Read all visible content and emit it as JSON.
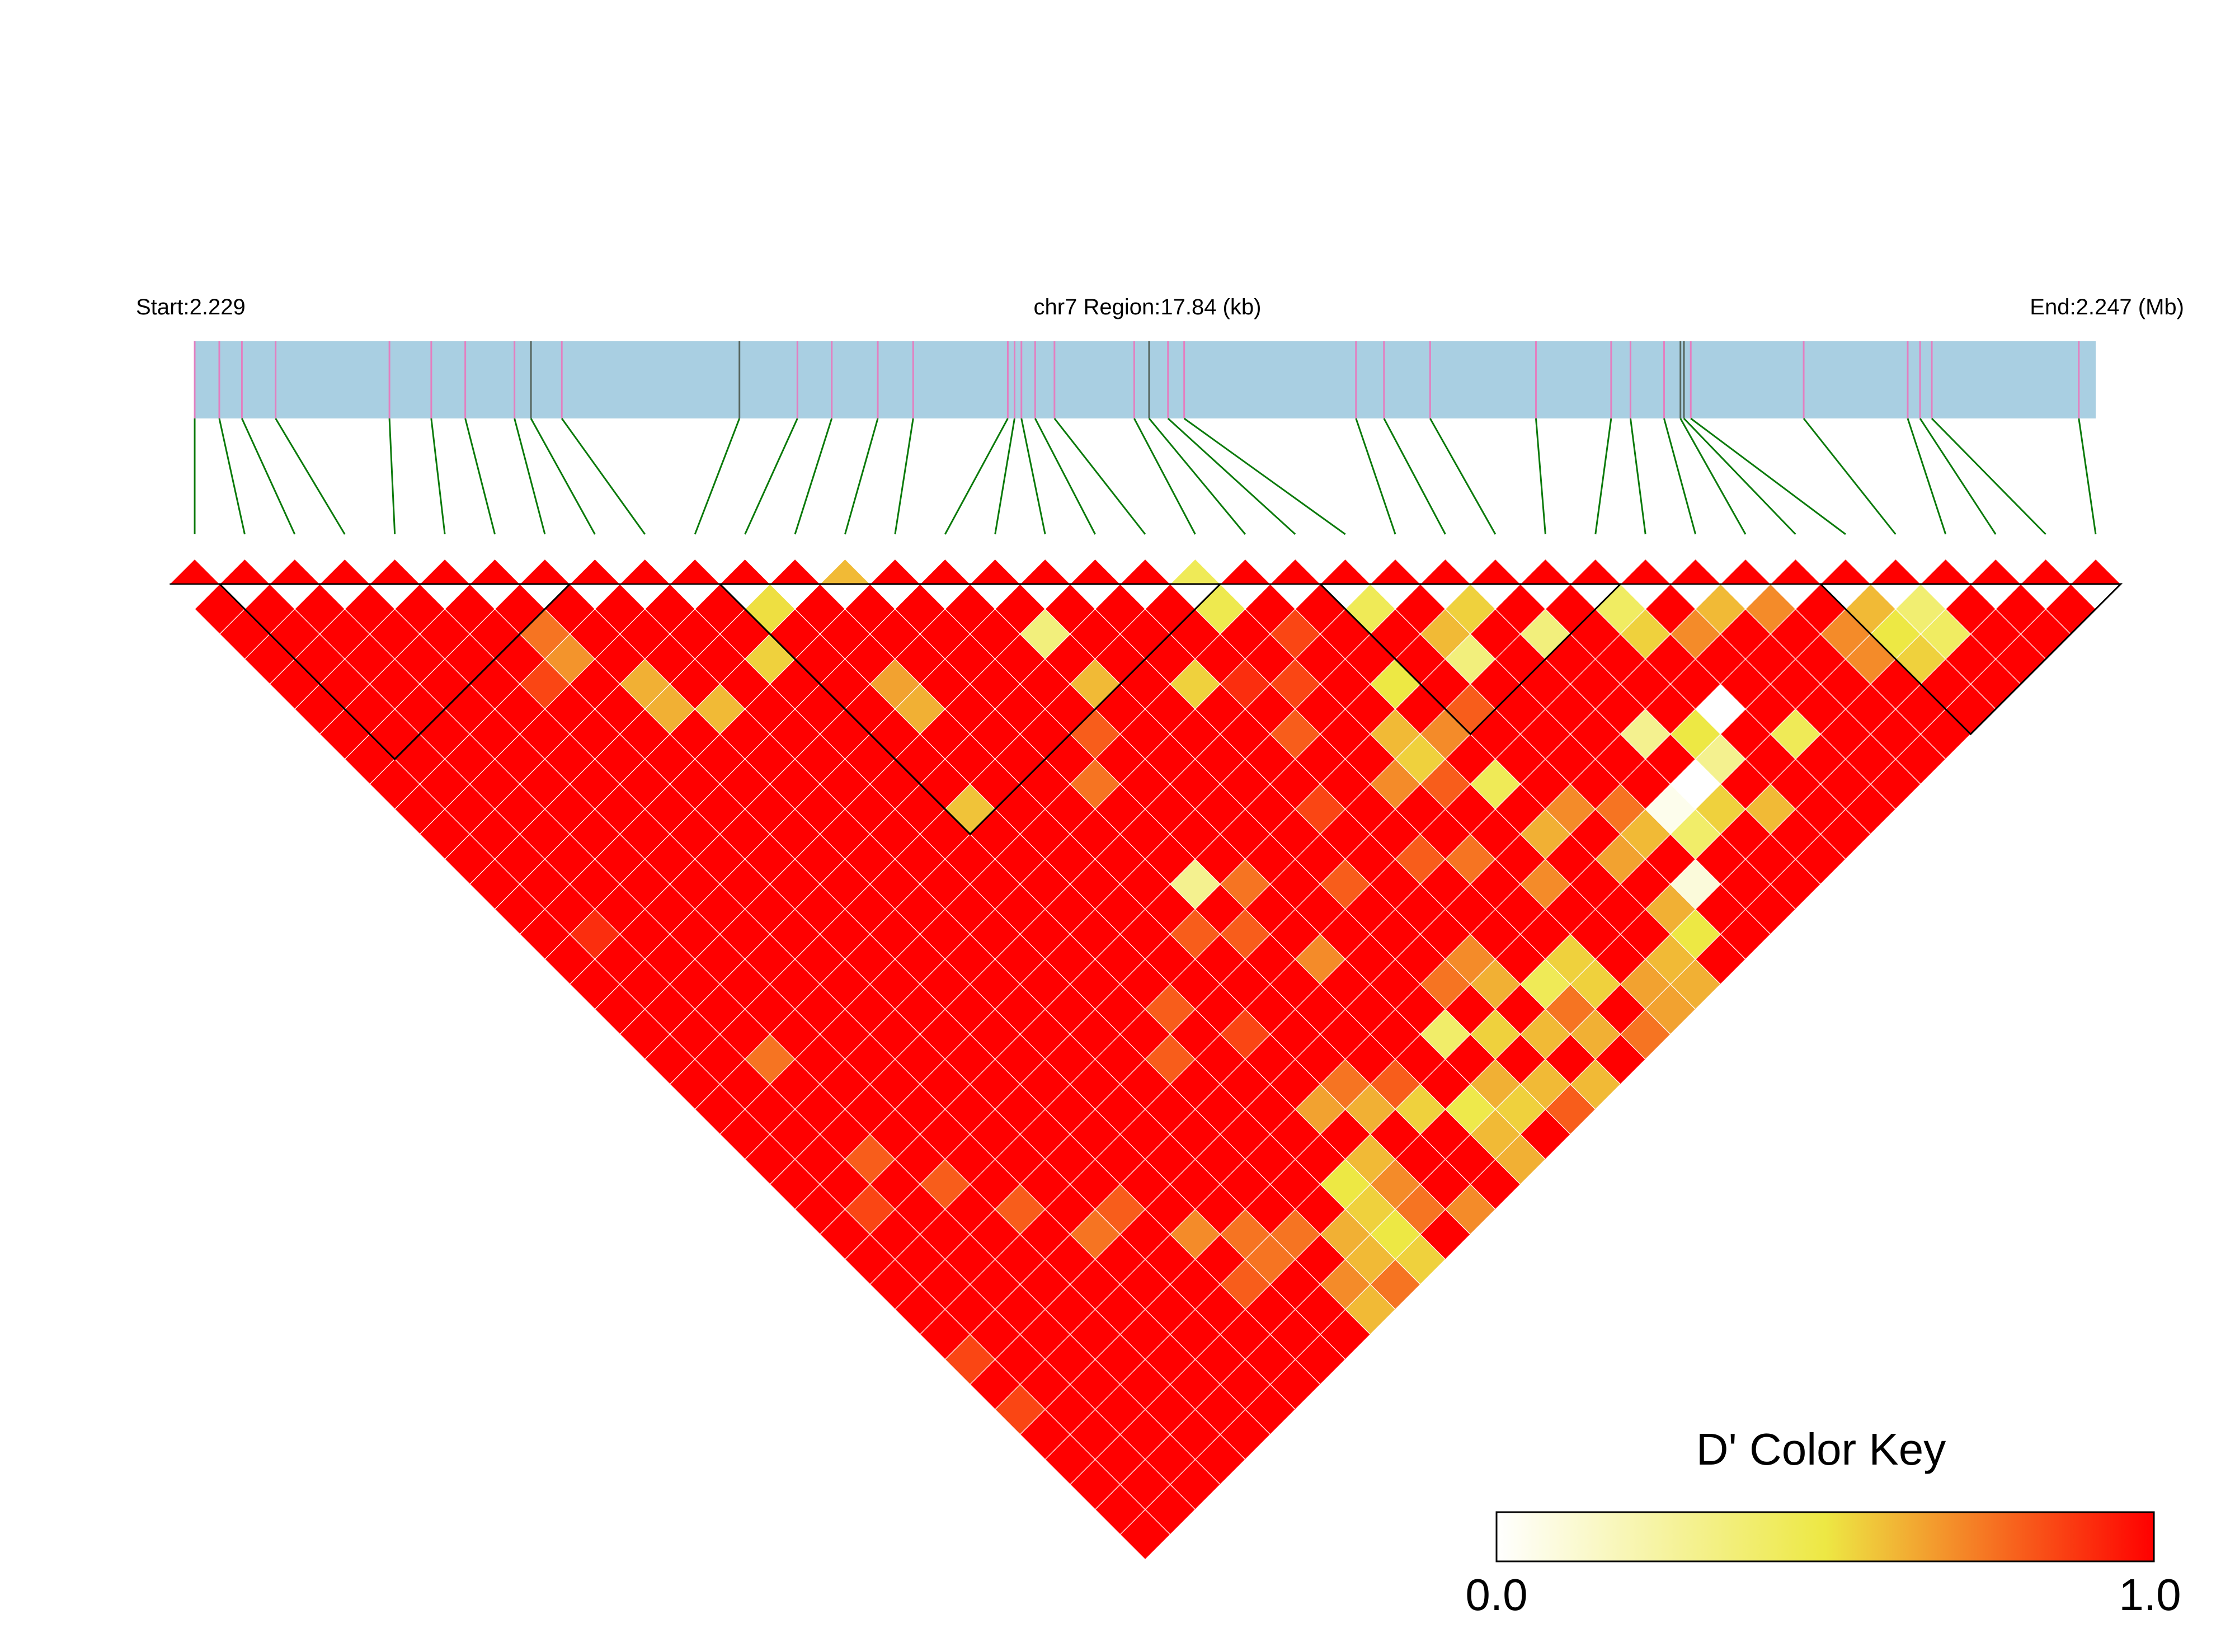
{
  "chart_data": {
    "type": "heatmap",
    "subtype": "ld-triangle",
    "header": {
      "start_label": "Start:2.229",
      "region_label": "chr7 Region:17.84 (kb)",
      "end_label": "End:2.247 (Mb)"
    },
    "chromosome": "chr7",
    "region_start_mb": 2.229,
    "region_end_mb": 2.247,
    "region_length_kb": 17.84,
    "snp_count": 39,
    "snp_positions_mb": [
      2.229,
      2.229233,
      2.229447,
      2.229766,
      2.230844,
      2.23124,
      2.231562,
      2.232028,
      2.232184,
      2.232476,
      2.234158,
      2.234707,
      2.235032,
      2.235468,
      2.235803,
      2.236699,
      2.236763,
      2.236828,
      2.236958,
      2.237141,
      2.237896,
      2.238037,
      2.238216,
      2.238369,
      2.239996,
      2.240261,
      2.240698,
      2.2417,
      2.242412,
      2.242595,
      2.242913,
      2.243068,
      2.243101,
      2.243166,
      2.244235,
      2.24522,
      2.245337,
      2.245448,
      2.24684
    ],
    "haplotype_blocks": [
      [
        1,
        7
      ],
      [
        11,
        20
      ],
      [
        23,
        28
      ],
      [
        33,
        38
      ]
    ],
    "color_key": {
      "title": "D' Color Key",
      "min_label": "0.0",
      "max_label": "1.0",
      "min": 0.0,
      "max": 1.0,
      "low_color": "#FFFFFF",
      "mid_color": "#EDE844",
      "high_color": "#FF0000"
    },
    "legend_position": "bottom-right",
    "colors": {
      "track_fill": "#A9CFE2",
      "tick_pink": "#E37FC0",
      "tick_dark": "#56665F",
      "connector_green": "#0B7A0B",
      "cell_grid": "#FFFFFF",
      "block_outline": "#000000"
    },
    "d_prime_default": 1.0,
    "d_prime_pairs": [
      [
        6,
        8,
        0.75
      ],
      [
        5,
        9,
        0.85
      ],
      [
        6,
        9,
        0.68
      ],
      [
        7,
        11,
        0.62
      ],
      [
        11,
        12,
        0.52
      ],
      [
        10,
        13,
        0.55
      ],
      [
        12,
        16,
        0.65
      ],
      [
        12,
        17,
        0.62
      ],
      [
        16,
        18,
        0.35
      ],
      [
        16,
        20,
        0.6
      ],
      [
        11,
        20,
        0.58
      ],
      [
        15,
        21,
        0.8
      ],
      [
        14,
        22,
        0.75
      ],
      [
        18,
        22,
        0.55
      ],
      [
        8,
        13,
        0.6
      ],
      [
        7,
        12,
        0.62
      ],
      [
        2,
        21,
        0.75
      ],
      [
        1,
        15,
        0.9
      ],
      [
        20,
        21,
        0.47
      ],
      [
        23,
        24,
        0.45
      ],
      [
        24,
        26,
        0.6
      ],
      [
        25,
        26,
        0.55
      ],
      [
        24,
        27,
        0.35
      ],
      [
        26,
        28,
        0.35
      ],
      [
        28,
        29,
        0.42
      ],
      [
        28,
        30,
        0.55
      ],
      [
        29,
        31,
        0.7
      ],
      [
        30,
        31,
        0.6
      ],
      [
        31,
        32,
        0.7
      ],
      [
        33,
        34,
        0.6
      ],
      [
        32,
        34,
        0.7
      ],
      [
        33,
        35,
        0.5
      ],
      [
        34,
        35,
        0.38
      ],
      [
        33,
        36,
        0.55
      ],
      [
        34,
        36,
        0.42
      ],
      [
        32,
        35,
        0.7
      ],
      [
        22,
        26,
        0.5
      ],
      [
        21,
        27,
        0.6
      ],
      [
        21,
        28,
        0.55
      ],
      [
        22,
        30,
        0.45
      ],
      [
        26,
        32,
        0.3
      ],
      [
        28,
        33,
        0.0
      ],
      [
        27,
        33,
        0.5
      ],
      [
        27,
        34,
        0.3
      ],
      [
        29,
        35,
        0.45
      ],
      [
        26,
        34,
        0.0
      ],
      [
        25,
        35,
        0.4
      ],
      [
        24,
        34,
        0.6
      ],
      [
        25,
        34,
        0.05
      ],
      [
        26,
        35,
        0.55
      ],
      [
        27,
        36,
        0.6
      ],
      [
        22,
        28,
        0.7
      ],
      [
        23,
        28,
        0.8
      ],
      [
        21,
        29,
        0.8
      ],
      [
        20,
        28,
        0.7
      ],
      [
        19,
        30,
        0.8
      ],
      [
        20,
        31,
        0.75
      ],
      [
        23,
        32,
        0.7
      ],
      [
        24,
        33,
        0.75
      ],
      [
        22,
        32,
        0.62
      ],
      [
        23,
        34,
        0.65
      ],
      [
        21,
        33,
        0.7
      ],
      [
        16,
        34,
        0.4
      ],
      [
        17,
        33,
        0.75
      ],
      [
        18,
        33,
        0.7
      ],
      [
        18,
        34,
        0.62
      ],
      [
        17,
        35,
        0.55
      ],
      [
        18,
        36,
        0.6
      ],
      [
        15,
        36,
        0.48
      ],
      [
        14,
        35,
        0.55
      ],
      [
        15,
        37,
        0.6
      ],
      [
        16,
        36,
        0.62
      ],
      [
        16,
        37,
        0.55
      ],
      [
        17,
        37,
        0.6
      ],
      [
        19,
        36,
        0.75
      ],
      [
        20,
        36,
        0.55
      ],
      [
        19,
        35,
        0.45
      ],
      [
        20,
        35,
        0.55
      ],
      [
        19,
        37,
        0.62
      ],
      [
        20,
        38,
        0.75
      ],
      [
        21,
        37,
        0.65
      ],
      [
        22,
        37,
        0.6
      ],
      [
        23,
        37,
        0.5
      ],
      [
        23,
        36,
        0.62
      ],
      [
        24,
        36,
        0.1
      ],
      [
        21,
        38,
        0.65
      ],
      [
        22,
        38,
        0.62
      ],
      [
        17,
        38,
        0.8
      ],
      [
        18,
        38,
        0.6
      ],
      [
        15,
        38,
        0.62
      ],
      [
        12,
        33,
        0.65
      ],
      [
        13,
        33,
        0.75
      ],
      [
        13,
        34,
        0.62
      ],
      [
        14,
        34,
        0.8
      ],
      [
        12,
        35,
        0.6
      ],
      [
        11,
        35,
        0.5
      ],
      [
        11,
        36,
        0.55
      ],
      [
        12,
        36,
        0.7
      ],
      [
        10,
        36,
        0.62
      ],
      [
        10,
        37,
        0.6
      ],
      [
        11,
        37,
        0.5
      ],
      [
        12,
        37,
        0.75
      ],
      [
        9,
        38,
        0.6
      ],
      [
        10,
        38,
        0.75
      ],
      [
        11,
        38,
        0.55
      ],
      [
        13,
        38,
        0.7
      ],
      [
        9,
        37,
        0.7
      ],
      [
        6,
        31,
        0.8
      ],
      [
        7,
        33,
        0.7
      ],
      [
        8,
        34,
        0.75
      ],
      [
        8,
        35,
        0.75
      ],
      [
        7,
        35,
        0.8
      ],
      [
        9,
        35,
        0.75
      ],
      [
        3,
        27,
        0.8
      ],
      [
        2,
        25,
        0.8
      ],
      [
        4,
        29,
        0.8
      ],
      [
        5,
        31,
        0.75
      ],
      [
        1,
        26,
        0.85
      ],
      [
        0,
        31,
        0.85
      ],
      [
        0,
        33,
        0.85
      ],
      [
        14,
        26,
        0.3
      ],
      [
        14,
        28,
        0.8
      ],
      [
        13,
        27,
        0.8
      ],
      [
        15,
        27,
        0.75
      ],
      [
        15,
        30,
        0.7
      ],
      [
        17,
        29,
        0.8
      ],
      [
        10,
        29,
        0.8
      ],
      [
        12,
        30,
        0.85
      ],
      [
        11,
        28,
        0.8
      ],
      [
        18,
        27,
        0.85
      ],
      [
        19,
        25,
        0.8
      ],
      [
        20,
        24,
        0.85
      ],
      [
        21,
        23,
        0.85
      ],
      [
        19,
        23,
        0.9
      ]
    ]
  }
}
